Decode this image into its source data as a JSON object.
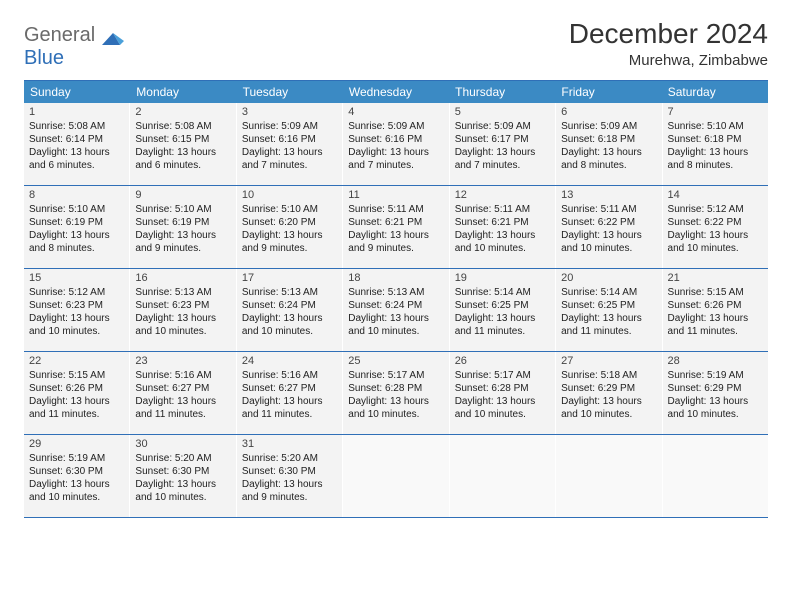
{
  "logo": {
    "word1": "General",
    "word2": "Blue"
  },
  "title": "December 2024",
  "location": "Murehwa, Zimbabwe",
  "colors": {
    "headerBg": "#3b8ac4",
    "borderBlue": "#2f6fb7",
    "cellBg": "#f3f3f3",
    "emptyBg": "#f9f9f9",
    "logoGray": "#6a6a6a",
    "logoBlue": "#2f6fb7",
    "text": "#222222"
  },
  "fonts": {
    "title_size": 28,
    "location_size": 15,
    "dow_size": 12,
    "daynum_size": 11,
    "body_size": 10
  },
  "daysOfWeek": [
    "Sunday",
    "Monday",
    "Tuesday",
    "Wednesday",
    "Thursday",
    "Friday",
    "Saturday"
  ],
  "weeks": [
    [
      {
        "n": "1",
        "sunrise": "5:08 AM",
        "sunset": "6:14 PM",
        "dl": "13 hours and 6 minutes."
      },
      {
        "n": "2",
        "sunrise": "5:08 AM",
        "sunset": "6:15 PM",
        "dl": "13 hours and 6 minutes."
      },
      {
        "n": "3",
        "sunrise": "5:09 AM",
        "sunset": "6:16 PM",
        "dl": "13 hours and 7 minutes."
      },
      {
        "n": "4",
        "sunrise": "5:09 AM",
        "sunset": "6:16 PM",
        "dl": "13 hours and 7 minutes."
      },
      {
        "n": "5",
        "sunrise": "5:09 AM",
        "sunset": "6:17 PM",
        "dl": "13 hours and 7 minutes."
      },
      {
        "n": "6",
        "sunrise": "5:09 AM",
        "sunset": "6:18 PM",
        "dl": "13 hours and 8 minutes."
      },
      {
        "n": "7",
        "sunrise": "5:10 AM",
        "sunset": "6:18 PM",
        "dl": "13 hours and 8 minutes."
      }
    ],
    [
      {
        "n": "8",
        "sunrise": "5:10 AM",
        "sunset": "6:19 PM",
        "dl": "13 hours and 8 minutes."
      },
      {
        "n": "9",
        "sunrise": "5:10 AM",
        "sunset": "6:19 PM",
        "dl": "13 hours and 9 minutes."
      },
      {
        "n": "10",
        "sunrise": "5:10 AM",
        "sunset": "6:20 PM",
        "dl": "13 hours and 9 minutes."
      },
      {
        "n": "11",
        "sunrise": "5:11 AM",
        "sunset": "6:21 PM",
        "dl": "13 hours and 9 minutes."
      },
      {
        "n": "12",
        "sunrise": "5:11 AM",
        "sunset": "6:21 PM",
        "dl": "13 hours and 10 minutes."
      },
      {
        "n": "13",
        "sunrise": "5:11 AM",
        "sunset": "6:22 PM",
        "dl": "13 hours and 10 minutes."
      },
      {
        "n": "14",
        "sunrise": "5:12 AM",
        "sunset": "6:22 PM",
        "dl": "13 hours and 10 minutes."
      }
    ],
    [
      {
        "n": "15",
        "sunrise": "5:12 AM",
        "sunset": "6:23 PM",
        "dl": "13 hours and 10 minutes."
      },
      {
        "n": "16",
        "sunrise": "5:13 AM",
        "sunset": "6:23 PM",
        "dl": "13 hours and 10 minutes."
      },
      {
        "n": "17",
        "sunrise": "5:13 AM",
        "sunset": "6:24 PM",
        "dl": "13 hours and 10 minutes."
      },
      {
        "n": "18",
        "sunrise": "5:13 AM",
        "sunset": "6:24 PM",
        "dl": "13 hours and 10 minutes."
      },
      {
        "n": "19",
        "sunrise": "5:14 AM",
        "sunset": "6:25 PM",
        "dl": "13 hours and 11 minutes."
      },
      {
        "n": "20",
        "sunrise": "5:14 AM",
        "sunset": "6:25 PM",
        "dl": "13 hours and 11 minutes."
      },
      {
        "n": "21",
        "sunrise": "5:15 AM",
        "sunset": "6:26 PM",
        "dl": "13 hours and 11 minutes."
      }
    ],
    [
      {
        "n": "22",
        "sunrise": "5:15 AM",
        "sunset": "6:26 PM",
        "dl": "13 hours and 11 minutes."
      },
      {
        "n": "23",
        "sunrise": "5:16 AM",
        "sunset": "6:27 PM",
        "dl": "13 hours and 11 minutes."
      },
      {
        "n": "24",
        "sunrise": "5:16 AM",
        "sunset": "6:27 PM",
        "dl": "13 hours and 11 minutes."
      },
      {
        "n": "25",
        "sunrise": "5:17 AM",
        "sunset": "6:28 PM",
        "dl": "13 hours and 10 minutes."
      },
      {
        "n": "26",
        "sunrise": "5:17 AM",
        "sunset": "6:28 PM",
        "dl": "13 hours and 10 minutes."
      },
      {
        "n": "27",
        "sunrise": "5:18 AM",
        "sunset": "6:29 PM",
        "dl": "13 hours and 10 minutes."
      },
      {
        "n": "28",
        "sunrise": "5:19 AM",
        "sunset": "6:29 PM",
        "dl": "13 hours and 10 minutes."
      }
    ],
    [
      {
        "n": "29",
        "sunrise": "5:19 AM",
        "sunset": "6:30 PM",
        "dl": "13 hours and 10 minutes."
      },
      {
        "n": "30",
        "sunrise": "5:20 AM",
        "sunset": "6:30 PM",
        "dl": "13 hours and 10 minutes."
      },
      {
        "n": "31",
        "sunrise": "5:20 AM",
        "sunset": "6:30 PM",
        "dl": "13 hours and 9 minutes."
      },
      null,
      null,
      null,
      null
    ]
  ],
  "labels": {
    "sunrise": "Sunrise:",
    "sunset": "Sunset:",
    "daylight": "Daylight:"
  }
}
